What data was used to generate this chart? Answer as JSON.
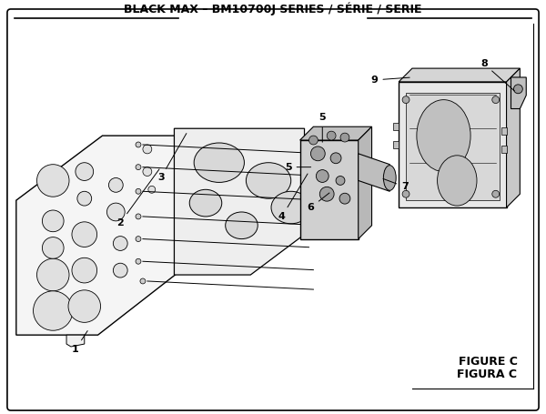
{
  "title": "BLACK MAX – BM10700J SERIES / SÉRIE / SERIE",
  "figure_label": "FIGURE C",
  "figura_label": "FIGURA C",
  "bg_color": "#ffffff",
  "border_color": "#000000",
  "text_color": "#000000",
  "title_fontsize": 9,
  "label_fontsize": 8,
  "fig_label_fontsize": 9
}
